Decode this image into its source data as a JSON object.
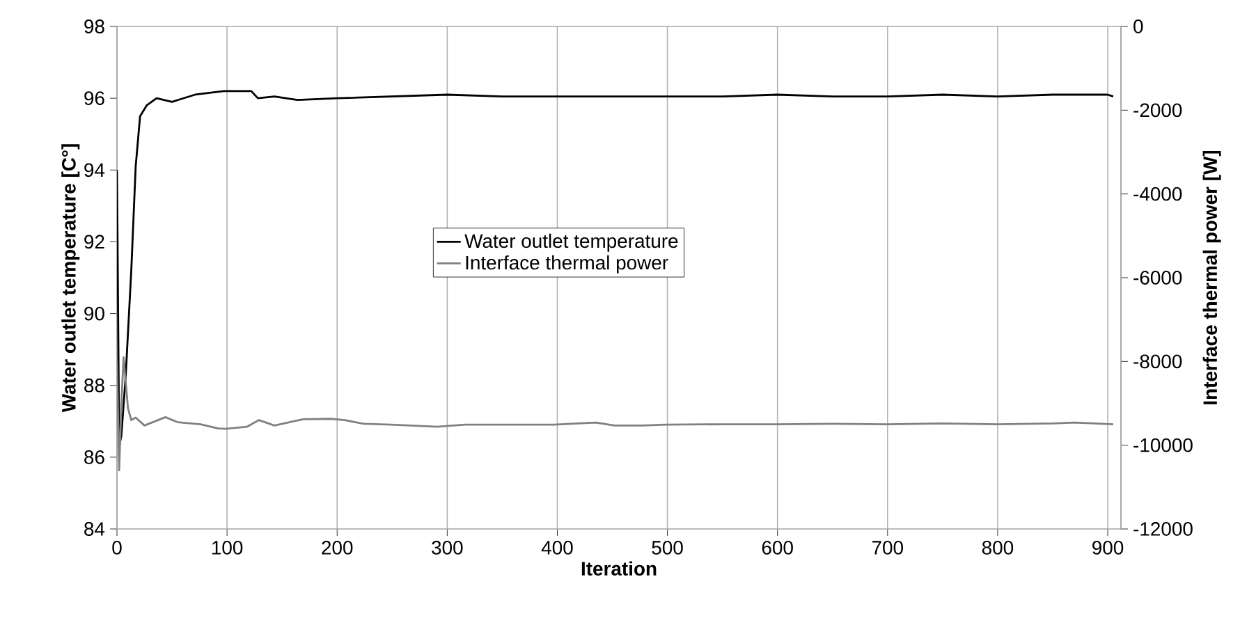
{
  "chart_data": {
    "type": "line",
    "xlabel": "Iteration",
    "ylabel": "Water outlet temperature [C°]",
    "y2label": "Interface thermal power [W]",
    "xlim": [
      0,
      912
    ],
    "xticks": [
      0,
      100,
      200,
      300,
      400,
      500,
      600,
      700,
      800,
      900
    ],
    "ylim": [
      84,
      98
    ],
    "yticks": [
      84,
      86,
      88,
      90,
      92,
      94,
      96,
      98
    ],
    "y2lim": [
      -12000,
      0
    ],
    "y2ticks": [
      -12000,
      -10000,
      -8000,
      -6000,
      -4000,
      -2000,
      0
    ],
    "grid": "x",
    "legend": "center",
    "line_style": "solid",
    "series": [
      {
        "name": "Water outlet temperature",
        "color": "#000000",
        "x": [
          0,
          2,
          4,
          8,
          13,
          17,
          21,
          27,
          36,
          50,
          71,
          97,
          122,
          128,
          143,
          164,
          200,
          250,
          300,
          350,
          400,
          450,
          500,
          550,
          600,
          650,
          700,
          750,
          800,
          850,
          900,
          905
        ],
        "values": [
          94,
          86.3,
          86.6,
          88.3,
          91.2,
          94.1,
          95.5,
          95.8,
          96.0,
          95.9,
          96.1,
          96.2,
          96.2,
          96.0,
          96.05,
          95.95,
          96.0,
          96.05,
          96.1,
          96.05,
          96.05,
          96.05,
          96.05,
          96.05,
          96.1,
          96.05,
          96.05,
          96.1,
          96.05,
          96.1,
          96.1,
          96.05
        ]
      },
      {
        "name": "Interface thermal power",
        "color": "#808080",
        "axis": "y2",
        "x": [
          0,
          2,
          4,
          6,
          10,
          13,
          17,
          25,
          44,
          55,
          76,
          92,
          99,
          118,
          129,
          143,
          169,
          194,
          207,
          224,
          249,
          291,
          316,
          354,
          397,
          435,
          452,
          477,
          498,
          550,
          600,
          650,
          700,
          750,
          800,
          850,
          870,
          905
        ],
        "values": [
          -8000,
          -10600,
          -9000,
          -7900,
          -9120,
          -9400,
          -9340,
          -9530,
          -9330,
          -9450,
          -9500,
          -9600,
          -9610,
          -9560,
          -9400,
          -9530,
          -9380,
          -9370,
          -9400,
          -9490,
          -9510,
          -9560,
          -9510,
          -9510,
          -9510,
          -9460,
          -9530,
          -9530,
          -9510,
          -9500,
          -9500,
          -9490,
          -9500,
          -9480,
          -9500,
          -9480,
          -9460,
          -9500
        ]
      }
    ]
  }
}
